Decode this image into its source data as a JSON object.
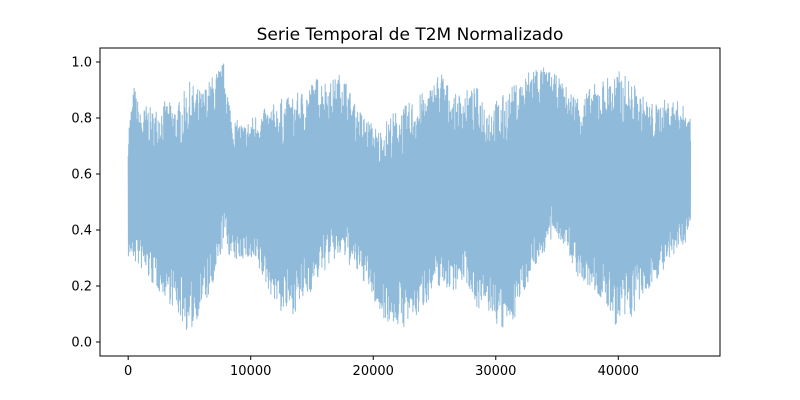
{
  "chart_data": {
    "type": "line",
    "title": "Serie Temporal de T2M Normalizado",
    "xlabel": "",
    "ylabel": "",
    "xlim": [
      -2300,
      48300
    ],
    "ylim": [
      -0.05,
      1.05
    ],
    "x_ticks": [
      0,
      10000,
      20000,
      30000,
      40000
    ],
    "x_tick_labels": [
      "0",
      "10000",
      "20000",
      "30000",
      "40000"
    ],
    "y_ticks": [
      0.0,
      0.2,
      0.4,
      0.6,
      0.8,
      1.0
    ],
    "y_tick_labels": [
      "0.0",
      "0.2",
      "0.4",
      "0.6",
      "0.8",
      "1.0"
    ],
    "grid": false,
    "legend": "none",
    "series": [
      {
        "color": "#8fbad9",
        "envelope": {
          "x": [
            0,
            500,
            1000,
            1500,
            2000,
            3000,
            4000,
            5000,
            6000,
            7000,
            7800,
            8500,
            9500,
            10500,
            11500,
            12500,
            13500,
            14500,
            15500,
            16500,
            17500,
            18500,
            19500,
            20500,
            21500,
            22500,
            23500,
            24500,
            25500,
            26500,
            27500,
            28500,
            29500,
            30500,
            31500,
            32500,
            33000,
            34000,
            35000,
            36000,
            37000,
            38000,
            39000,
            40000,
            41000,
            42000,
            43000,
            44000,
            45000,
            45900
          ],
          "upper": [
            0.77,
            0.92,
            0.82,
            0.85,
            0.83,
            0.86,
            0.85,
            0.93,
            0.9,
            0.96,
            1.0,
            0.8,
            0.78,
            0.82,
            0.84,
            0.87,
            0.88,
            0.91,
            0.95,
            0.93,
            0.97,
            0.85,
            0.8,
            0.76,
            0.82,
            0.84,
            0.88,
            0.9,
            0.98,
            0.88,
            0.9,
            0.91,
            0.85,
            0.88,
            0.92,
            0.96,
            1.0,
            0.98,
            0.95,
            0.9,
            0.88,
            0.92,
            0.95,
            0.97,
            0.94,
            0.88,
            0.85,
            0.87,
            0.86,
            0.81
          ],
          "lower": [
            0.3,
            0.28,
            0.26,
            0.23,
            0.2,
            0.16,
            0.1,
            0.02,
            0.12,
            0.18,
            0.36,
            0.28,
            0.3,
            0.26,
            0.18,
            0.1,
            0.1,
            0.15,
            0.22,
            0.28,
            0.3,
            0.25,
            0.2,
            0.1,
            0.06,
            0.05,
            0.08,
            0.15,
            0.2,
            0.18,
            0.22,
            0.12,
            0.1,
            0.03,
            0.08,
            0.2,
            0.25,
            0.32,
            0.38,
            0.3,
            0.2,
            0.18,
            0.12,
            0.04,
            0.08,
            0.15,
            0.22,
            0.26,
            0.33,
            0.38
          ]
        }
      }
    ]
  }
}
